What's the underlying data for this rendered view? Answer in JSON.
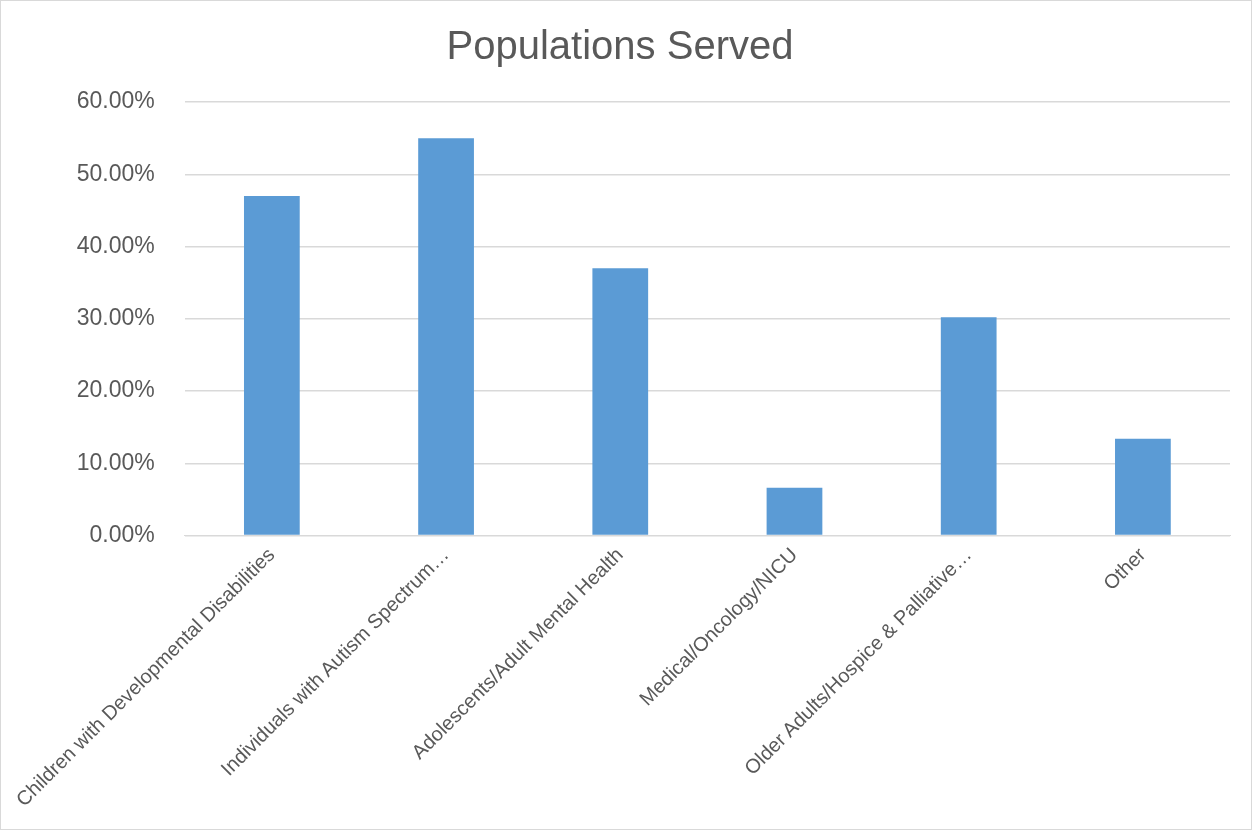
{
  "chart_data": {
    "type": "bar",
    "title": "Populations Served",
    "categories": [
      "Children with Developmental Disabilities",
      "Individuals with Autism Spectrum…",
      "Adolescents/Adult Mental Health",
      "Medical/Oncology/NICU",
      "Older Adults/Hospice & Palliative…",
      "Other"
    ],
    "values": [
      47.0,
      55.0,
      37.0,
      6.6,
      30.2,
      13.4
    ],
    "color": "#5b9bd5",
    "ylim": [
      0,
      60
    ],
    "yticks": [
      {
        "value": 0,
        "label": "0.00%"
      },
      {
        "value": 10,
        "label": "10.00%"
      },
      {
        "value": 20,
        "label": "20.00%"
      },
      {
        "value": 30,
        "label": "30.00%"
      },
      {
        "value": 40,
        "label": "40.00%"
      },
      {
        "value": 50,
        "label": "50.00%"
      },
      {
        "value": 60,
        "label": "60.00%"
      }
    ],
    "grid": "y",
    "legend": false
  }
}
